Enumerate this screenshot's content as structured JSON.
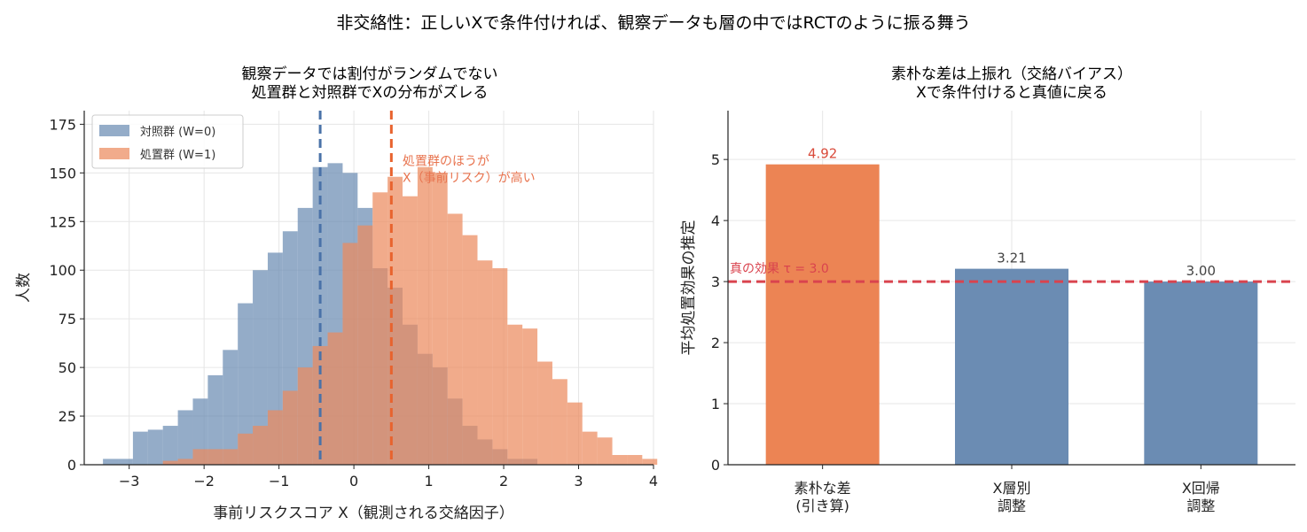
{
  "figure": {
    "suptitle": "非交絡性：正しいXで条件付ければ、観察データも層の中ではRCTのように振る舞う"
  },
  "chart_data": [
    {
      "type": "histogram",
      "title_lines": [
        "観察データでは割付がランダムでない",
        "処置群と対照群でXの分布がズレる"
      ],
      "xlabel": "事前リスクスコア X（観測される交絡因子）",
      "ylabel": "人数",
      "xlim": [
        -3.6,
        4.0
      ],
      "ylim": [
        0,
        182
      ],
      "xticks": [
        -3,
        -2,
        -1,
        0,
        1,
        2,
        3,
        4
      ],
      "xtick_labels": [
        "−3",
        "−2",
        "−1",
        "0",
        "1",
        "2",
        "3",
        "4"
      ],
      "yticks": [
        0,
        25,
        50,
        75,
        100,
        125,
        150,
        175
      ],
      "grid": true,
      "legend_position": "top-left",
      "bin_start": -3.35,
      "bin_width": 0.2,
      "series": [
        {
          "name": "対照群 (W=0)",
          "color": "#6b8cb3",
          "mean_line": -0.45,
          "counts": [
            3,
            3,
            17,
            18,
            20,
            28,
            34,
            46,
            59,
            83,
            100,
            109,
            120,
            132,
            153,
            155,
            150,
            132,
            101,
            91,
            72,
            57,
            50,
            34,
            20,
            13,
            8,
            3,
            3,
            0,
            0,
            0,
            0,
            0,
            0,
            0,
            0,
            0
          ]
        },
        {
          "name": "処置群 (W=1)",
          "color": "#ec8a5e",
          "mean_line": 0.5,
          "counts": [
            0,
            0,
            0,
            0,
            2,
            3,
            8,
            8,
            8,
            16,
            20,
            28,
            38,
            50,
            61,
            68,
            114,
            123,
            140,
            148,
            138,
            153,
            150,
            129,
            118,
            105,
            101,
            72,
            70,
            53,
            44,
            32,
            17,
            14,
            5,
            5,
            3,
            0
          ]
        }
      ],
      "annotation": {
        "lines": [
          "処置群のほうが",
          "X（事前リスク）が高い"
        ],
        "x": 0.65,
        "y": 154,
        "color": "#e8744f"
      }
    },
    {
      "type": "bar",
      "title_lines": [
        "素朴な差は上振れ（交絡バイアス）",
        "Xで条件付けると真値に戻る"
      ],
      "xlabel": "",
      "ylabel": "平均処置効果の推定",
      "categories": [
        [
          "素朴な差",
          "(引き算)"
        ],
        [
          "X層別",
          "調整"
        ],
        [
          "X回帰",
          "調整"
        ]
      ],
      "values": [
        4.92,
        3.21,
        3.0
      ],
      "value_labels": [
        "4.92",
        "3.21",
        "3.00"
      ],
      "bar_colors": [
        "#ec8454",
        "#6b8cb3",
        "#6b8cb3"
      ],
      "label_colors": [
        "#d94a3a",
        "#444444",
        "#444444"
      ],
      "ylim": [
        0,
        5.8
      ],
      "yticks": [
        0,
        1,
        2,
        3,
        4,
        5
      ],
      "grid": true,
      "reference_line": {
        "value": 3.0,
        "label": "真の効果 τ = 3.0",
        "color": "#d9434e"
      }
    }
  ]
}
